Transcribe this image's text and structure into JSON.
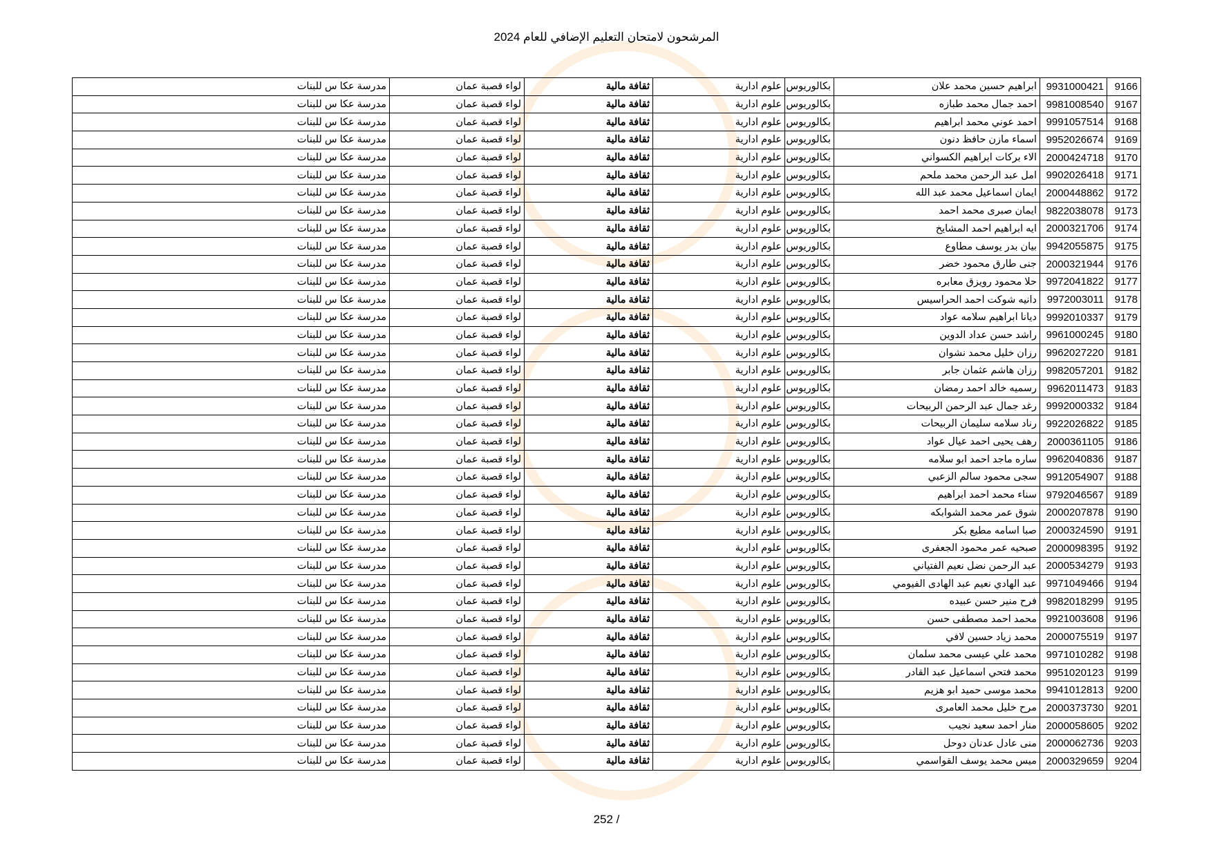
{
  "header": {
    "title": "المرشحون لامتحان التعليم الإضافي للعام 2024"
  },
  "columns_common": {
    "degree": "بكالوريوس",
    "specialization": "علوم ادارية",
    "subject": "ثقافة مالية",
    "district": "لواء قصبة عمان",
    "school": "مدرسة عكا س للبنات"
  },
  "rows": [
    {
      "no": "9166",
      "id": "9931000421",
      "name": "ابراهيم حسين محمد علان"
    },
    {
      "no": "9167",
      "id": "9981008540",
      "name": "احمد جمال محمد طبازه"
    },
    {
      "no": "9168",
      "id": "9991057514",
      "name": "احمد عوني محمد ابراهيم"
    },
    {
      "no": "9169",
      "id": "9952026674",
      "name": "اسماء مازن حافظ دنون"
    },
    {
      "no": "9170",
      "id": "2000424718",
      "name": "الاء بركات ابراهيم الكسواني"
    },
    {
      "no": "9171",
      "id": "9902026418",
      "name": "امل عبد الرحمن محمد ملحم"
    },
    {
      "no": "9172",
      "id": "2000448862",
      "name": "ايمان اسماعيل محمد عبد الله"
    },
    {
      "no": "9173",
      "id": "9822038078",
      "name": "ايمان صبرى محمد احمد"
    },
    {
      "no": "9174",
      "id": "2000321706",
      "name": "ايه ابراهيم احمد المشايخ"
    },
    {
      "no": "9175",
      "id": "9942055875",
      "name": "بيان بدر يوسف مطاوع"
    },
    {
      "no": "9176",
      "id": "2000321944",
      "name": "جنى طارق محمود خضر"
    },
    {
      "no": "9177",
      "id": "9972041822",
      "name": "حلا محمود رويزق معابره"
    },
    {
      "no": "9178",
      "id": "9972003011",
      "name": "دانيه شوكت احمد الحراسيس"
    },
    {
      "no": "9179",
      "id": "9992010337",
      "name": "ديانا ابراهيم سلامه عواد"
    },
    {
      "no": "9180",
      "id": "9961000245",
      "name": "راشد حسن عداد الدوين"
    },
    {
      "no": "9181",
      "id": "9962027220",
      "name": "رزان خليل محمد نشوان"
    },
    {
      "no": "9182",
      "id": "9982057201",
      "name": "رزان هاشم عثمان جابر"
    },
    {
      "no": "9183",
      "id": "9962011473",
      "name": "رسميه خالد احمد رمضان"
    },
    {
      "no": "9184",
      "id": "9992000332",
      "name": "رغد جمال عبد الرحمن الربيحات"
    },
    {
      "no": "9185",
      "id": "9922026822",
      "name": "رناد سلامه سليمان الربيحات"
    },
    {
      "no": "9186",
      "id": "2000361105",
      "name": "رهف يحيى احمد عيال عواد"
    },
    {
      "no": "9187",
      "id": "9962040836",
      "name": "ساره ماجد احمد ابو سلامه"
    },
    {
      "no": "9188",
      "id": "9912054907",
      "name": "سجى محمود سالم الزعبي"
    },
    {
      "no": "9189",
      "id": "9792046567",
      "name": "سناء محمد احمد ابراهيم"
    },
    {
      "no": "9190",
      "id": "2000207878",
      "name": "شوق عمر محمد الشوابكه"
    },
    {
      "no": "9191",
      "id": "2000324590",
      "name": "صبا اسامه مطيع بكر"
    },
    {
      "no": "9192",
      "id": "2000098395",
      "name": "صبحيه عمر محمود الجعفرى"
    },
    {
      "no": "9193",
      "id": "2000534279",
      "name": "عبد الرحمن نضل نعيم الفتياني"
    },
    {
      "no": "9194",
      "id": "9971049466",
      "name": "عبد الهادي نعيم عبد الهادى الفيومي"
    },
    {
      "no": "9195",
      "id": "9982018299",
      "name": "فرح منير حسن عبيده"
    },
    {
      "no": "9196",
      "id": "9921003608",
      "name": "محمد احمد مصطفى حسن"
    },
    {
      "no": "9197",
      "id": "2000075519",
      "name": "محمد زياد حسين لافي"
    },
    {
      "no": "9198",
      "id": "9971010282",
      "name": "محمد علي عيسى محمد سلمان"
    },
    {
      "no": "9199",
      "id": "9951020123",
      "name": "محمد فتحي اسماعيل عبد القادر"
    },
    {
      "no": "9200",
      "id": "9941012813",
      "name": "محمد موسى حميد ابو هزيم"
    },
    {
      "no": "9201",
      "id": "2000373730",
      "name": "مرح خليل محمد العامرى"
    },
    {
      "no": "9202",
      "id": "2000058605",
      "name": "منار احمد سعيد نجيب"
    },
    {
      "no": "9203",
      "id": "2000062736",
      "name": "منى عادل عدنان دوحل"
    },
    {
      "no": "9204",
      "id": "2000329659",
      "name": "ميس محمد يوسف القواسمي"
    }
  ],
  "footer": {
    "page": "252 /"
  }
}
